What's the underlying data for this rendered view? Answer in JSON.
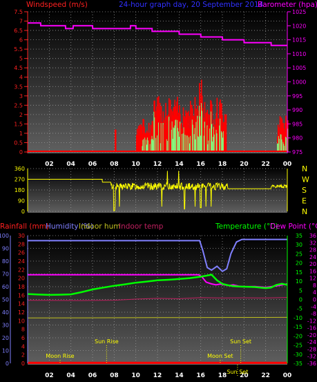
{
  "header": {
    "wind_label": "Windspeed (m/s)",
    "title": "24-hour graph day, 20 September 2014",
    "baro_label": "Barometer (hpa)",
    "rain_label": "Rainfall (mm)",
    "hum_label": "Humidity (%)",
    "inhum_label": "Indoor hum",
    "intemp_label": "Indoor temp",
    "temp_label": "Temperature (°C)",
    "dew_label": "Dew Point (°C)"
  },
  "colors": {
    "wind": "#ff0000",
    "gust_fill": "#ff0000",
    "avg_fill": "#80ff80",
    "baro": "#ff00ff",
    "dir": "#ffff00",
    "rain": "#ff0000",
    "humidity": "#8080ff",
    "in_hum": "#c0c020",
    "in_temp": "#c02060",
    "temp": "#00ff00",
    "dew": "#ff00ff",
    "annot": "#ffff00"
  },
  "chart_data": [
    {
      "type": "line",
      "name": "wind_baro",
      "x_ticks": [
        "02",
        "04",
        "06",
        "08",
        "10",
        "12",
        "14",
        "16",
        "18",
        "20",
        "22",
        "00"
      ],
      "y_left_ticks": [
        "0",
        "0.5",
        "1",
        "1.5",
        "2",
        "2.5",
        "3",
        "3.5",
        "4",
        "4.5",
        "5",
        "5.5",
        "6",
        "6.5",
        "7",
        "7.5"
      ],
      "y_right_ticks": [
        "975",
        "980",
        "985",
        "990",
        "995",
        "1000",
        "1005",
        "1010",
        "1015",
        "1020",
        "1025"
      ],
      "ylim_left": [
        0,
        7.5
      ],
      "ylim_right": [
        975,
        1025
      ],
      "series": [
        {
          "name": "Barometer",
          "axis": "right",
          "x": [
            0,
            1.2,
            1.21,
            3.5,
            3.51,
            4.2,
            4.21,
            6.0,
            6.01,
            9.5,
            9.51,
            10,
            10.01,
            10.5,
            10.51,
            11.5,
            11.51,
            14.0,
            14.01,
            16.0,
            16.01,
            18.0,
            18.01,
            20.0,
            20.01,
            22.5,
            22.51,
            24
          ],
          "y": [
            1021,
            1021,
            1020,
            1020,
            1019,
            1019,
            1020,
            1020,
            1019,
            1019,
            1020,
            1020,
            1019,
            1019,
            1019,
            1019,
            1018,
            1018,
            1017,
            1017,
            1016,
            1016,
            1015,
            1015,
            1014,
            1014,
            1013,
            1013
          ]
        }
      ]
    },
    {
      "type": "line",
      "name": "wind_direction",
      "x_ticks": [
        "02",
        "04",
        "06",
        "08",
        "10",
        "12",
        "14",
        "16",
        "18",
        "20",
        "22",
        "00"
      ],
      "y_ticks": [
        "0",
        "90",
        "180",
        "270",
        "360"
      ],
      "ylim": [
        0,
        360
      ],
      "compass": [
        "N",
        "W",
        "S",
        "E",
        "N"
      ],
      "series": [
        {
          "name": "Direction",
          "x": [
            0,
            6.9,
            6.91,
            7.7,
            7.71,
            8.5,
            18.5,
            18.51,
            22.5,
            22.51,
            24
          ],
          "y": [
            270,
            270,
            245,
            245,
            230,
            210,
            210,
            190,
            190,
            210,
            210
          ]
        }
      ]
    },
    {
      "type": "line",
      "name": "temp_hum_rain",
      "x_ticks": [
        "02",
        "04",
        "06",
        "08",
        "10",
        "12",
        "14",
        "16",
        "18",
        "20",
        "22",
        "00"
      ],
      "y_left_ticks": [
        "0",
        "10",
        "20",
        "30",
        "40",
        "50",
        "60",
        "70",
        "80",
        "90",
        "100"
      ],
      "y_rain_ticks": [
        "0",
        "2",
        "4",
        "6",
        "8",
        "10",
        "12",
        "14",
        "16",
        "18",
        "20",
        "22",
        "24",
        "26",
        "28",
        "30"
      ],
      "y_temp_ticks": [
        "-35",
        "-30",
        "-25",
        "-20",
        "-15",
        "-10",
        "-5",
        "0",
        "5",
        "10",
        "15",
        "20",
        "25",
        "30",
        "35"
      ],
      "y_dew_ticks": [
        "-36",
        "-32",
        "-28",
        "-24",
        "-20",
        "-16",
        "-12",
        "-8",
        "-4",
        "0",
        "4",
        "8",
        "12",
        "16",
        "20",
        "24",
        "28",
        "32",
        "36"
      ],
      "ylim_humidity": [
        0,
        100
      ],
      "ylim_temp": [
        -35,
        35
      ],
      "series": [
        {
          "name": "Humidity",
          "axis": "humidity",
          "x": [
            0,
            15.9,
            16.2,
            16.6,
            17.0,
            17.5,
            18.0,
            18.4,
            18.8,
            19.3,
            19.8,
            20.5,
            21.0,
            24
          ],
          "y": [
            96,
            96,
            88,
            75,
            73,
            76,
            72,
            74,
            86,
            95,
            97,
            97,
            97,
            97
          ]
        },
        {
          "name": "Temperature",
          "axis": "temp",
          "x": [
            0,
            1,
            2,
            3,
            4,
            5,
            6,
            7,
            8,
            9,
            10,
            11,
            12,
            13,
            14,
            15,
            16,
            16.5,
            17,
            17.5,
            18,
            18.5,
            19,
            19.5,
            20,
            21,
            22,
            22.5,
            23,
            23.5,
            24
          ],
          "y": [
            3,
            2.7,
            2.5,
            2.6,
            2.8,
            4,
            5.5,
            6.5,
            7.5,
            8.3,
            9.2,
            9.8,
            10.5,
            10.8,
            11.2,
            11.7,
            12.5,
            13,
            13.6,
            10.5,
            8.5,
            7.8,
            7.3,
            7.1,
            7,
            6.8,
            6.2,
            6.5,
            8,
            8.6,
            8
          ]
        },
        {
          "name": "Dew Point",
          "axis": "temp",
          "x": [
            0,
            15.8,
            16.1,
            16.5,
            17.0,
            17.4,
            17.8,
            18.2,
            18.6,
            19.0,
            19.5,
            20,
            21,
            22,
            23,
            24
          ],
          "y": [
            13.5,
            13.5,
            12.5,
            9.5,
            8.5,
            8.0,
            8.4,
            8.0,
            7.6,
            8.0,
            7.3,
            7.0,
            7.1,
            6.6,
            7.4,
            8.5
          ]
        },
        {
          "name": "Indoor temp",
          "axis": "temp",
          "x": [
            0,
            5,
            8,
            10,
            12,
            14,
            16,
            18,
            20,
            22,
            24
          ],
          "y": [
            -0.5,
            -0.6,
            -0.4,
            0.2,
            0.6,
            0.4,
            1.0,
            0.8,
            0.9,
            0.8,
            1.1
          ]
        },
        {
          "name": "Indoor hum",
          "axis": "humidity",
          "x": [
            0,
            12,
            24
          ],
          "y": [
            35.5,
            35.8,
            36.0
          ]
        },
        {
          "name": "Rainfall",
          "axis": "humidity",
          "x": [
            0,
            24
          ],
          "y": [
            0.4,
            0.4
          ]
        }
      ],
      "annotations": [
        {
          "label": "Moon Rise",
          "x": 3.0
        },
        {
          "label": "Sun Rise",
          "x": 7.3
        },
        {
          "label": "Sun Set",
          "x": 19.7
        },
        {
          "label": "Moon Set",
          "x": 17.8
        },
        {
          "label": "Sun Set",
          "x": 19.4
        }
      ]
    }
  ]
}
